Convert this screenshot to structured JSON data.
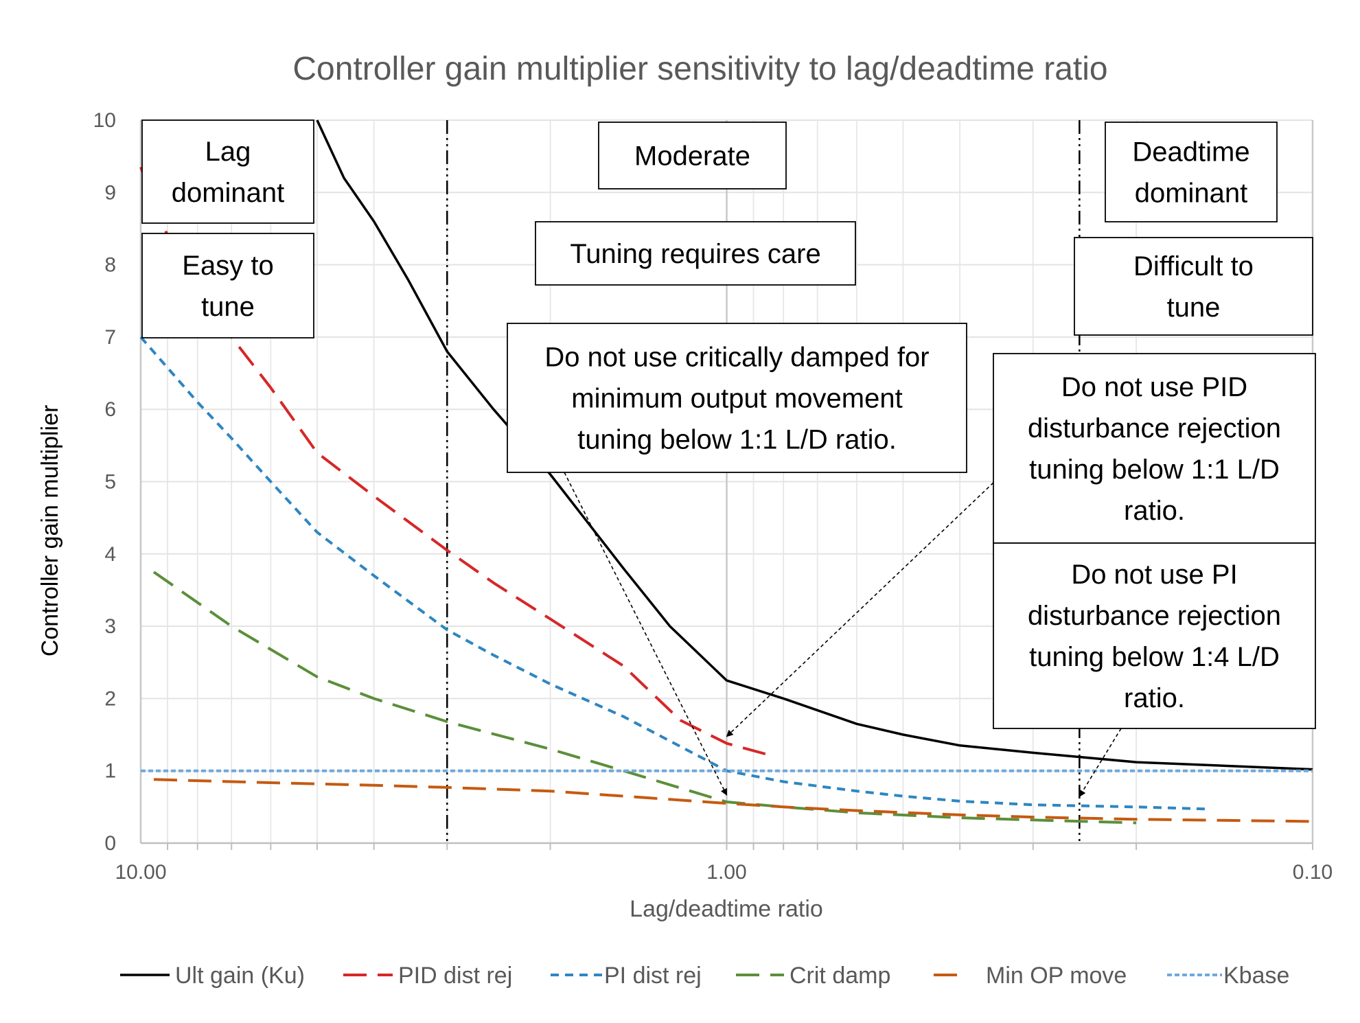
{
  "chart_data": {
    "type": "line",
    "title": "Controller gain multiplier sensitivity to lag/deadtime ratio",
    "xlabel": "Lag/deadtime ratio",
    "ylabel": "Controller gain multiplier",
    "x_scale": "log",
    "x_reversed": true,
    "xlim": [
      10,
      0.1
    ],
    "ylim": [
      0,
      10
    ],
    "x_tick_labels": [
      {
        "value": 10,
        "label": "10.00"
      },
      {
        "value": 1,
        "label": "1.00"
      },
      {
        "value": 0.1,
        "label": "0.10"
      }
    ],
    "y_ticks": [
      0,
      1,
      2,
      3,
      4,
      5,
      6,
      7,
      8,
      9,
      10
    ],
    "grid": true,
    "legend_position": "bottom",
    "series": [
      {
        "name": "Ult gain (Ku)",
        "color": "#000000",
        "dash": "solid",
        "points": [
          [
            5.0,
            10.0
          ],
          [
            4.5,
            9.2
          ],
          [
            4.0,
            8.6
          ],
          [
            3.5,
            7.8
          ],
          [
            3.0,
            6.8
          ],
          [
            2.5,
            6.0
          ],
          [
            2.0,
            5.1
          ],
          [
            1.5,
            3.8
          ],
          [
            1.25,
            3.0
          ],
          [
            1.0,
            2.25
          ],
          [
            0.8,
            2.0
          ],
          [
            0.6,
            1.65
          ],
          [
            0.5,
            1.5
          ],
          [
            0.4,
            1.35
          ],
          [
            0.3,
            1.25
          ],
          [
            0.2,
            1.12
          ],
          [
            0.1,
            1.02
          ]
        ]
      },
      {
        "name": "PID dist rej",
        "color": "#d62728",
        "dash": "long",
        "points": [
          [
            10.0,
            9.35
          ],
          [
            9.0,
            8.4
          ],
          [
            8.0,
            7.8
          ],
          [
            7.0,
            7.0
          ],
          [
            6.0,
            6.3
          ],
          [
            5.0,
            5.4
          ],
          [
            4.0,
            4.8
          ],
          [
            3.0,
            4.05
          ],
          [
            2.5,
            3.6
          ],
          [
            2.0,
            3.1
          ],
          [
            1.5,
            2.45
          ],
          [
            1.2,
            1.7
          ],
          [
            1.0,
            1.38
          ],
          [
            0.83,
            1.2
          ]
        ]
      },
      {
        "name": "PI dist rej",
        "color": "#2e86c1",
        "dash": "short",
        "points": [
          [
            10.0,
            7.0
          ],
          [
            8.0,
            6.1
          ],
          [
            7.0,
            5.6
          ],
          [
            6.0,
            5.0
          ],
          [
            5.0,
            4.3
          ],
          [
            4.0,
            3.7
          ],
          [
            3.0,
            2.95
          ],
          [
            2.5,
            2.6
          ],
          [
            2.0,
            2.2
          ],
          [
            1.5,
            1.75
          ],
          [
            1.0,
            1.0
          ],
          [
            0.8,
            0.85
          ],
          [
            0.6,
            0.72
          ],
          [
            0.5,
            0.65
          ],
          [
            0.4,
            0.58
          ],
          [
            0.3,
            0.53
          ],
          [
            0.2,
            0.5
          ],
          [
            0.15,
            0.47
          ]
        ]
      },
      {
        "name": "Crit damp",
        "color": "#5b8f3a",
        "dash": "long",
        "points": [
          [
            9.5,
            3.75
          ],
          [
            7.0,
            3.0
          ],
          [
            5.0,
            2.3
          ],
          [
            4.0,
            2.0
          ],
          [
            3.0,
            1.68
          ],
          [
            2.0,
            1.3
          ],
          [
            1.5,
            1.0
          ],
          [
            1.0,
            0.57
          ],
          [
            0.8,
            0.5
          ],
          [
            0.6,
            0.42
          ],
          [
            0.4,
            0.35
          ],
          [
            0.3,
            0.32
          ],
          [
            0.2,
            0.28
          ]
        ]
      },
      {
        "name": "Min OP move",
        "color": "#c55a11",
        "dash": "long",
        "points": [
          [
            9.5,
            0.88
          ],
          [
            7.0,
            0.85
          ],
          [
            5.0,
            0.82
          ],
          [
            4.0,
            0.8
          ],
          [
            3.0,
            0.77
          ],
          [
            2.0,
            0.72
          ],
          [
            1.5,
            0.65
          ],
          [
            1.0,
            0.55
          ],
          [
            0.8,
            0.5
          ],
          [
            0.6,
            0.45
          ],
          [
            0.4,
            0.39
          ],
          [
            0.3,
            0.36
          ],
          [
            0.2,
            0.33
          ],
          [
            0.1,
            0.3
          ]
        ]
      },
      {
        "name": "Kbase",
        "color": "#6fa8dc",
        "dash": "dotted",
        "points": [
          [
            10.0,
            1.0
          ],
          [
            0.1,
            1.0
          ]
        ]
      }
    ],
    "reference_lines": [
      {
        "x": 3.0,
        "style": "dash-dot-dot",
        "color": "#000000"
      },
      {
        "x": 0.25,
        "style": "dash-dot-dot",
        "color": "#000000"
      }
    ],
    "annotations": [
      {
        "id": "lag-dominant",
        "lines": [
          "Lag",
          "dominant"
        ]
      },
      {
        "id": "easy-to-tune",
        "lines": [
          "Easy to",
          "tune"
        ]
      },
      {
        "id": "moderate",
        "lines": [
          "Moderate"
        ]
      },
      {
        "id": "tuning-requires-care",
        "lines": [
          "Tuning requires care"
        ]
      },
      {
        "id": "deadtime-dominant",
        "lines": [
          "Deadtime",
          "dominant"
        ]
      },
      {
        "id": "difficult-to-tune",
        "lines": [
          "Difficult to",
          "tune"
        ]
      },
      {
        "id": "crit-damped-note",
        "lines": [
          "Do not use critically damped for",
          "minimum output movement",
          "tuning below 1:1 L/D ratio."
        ],
        "points_to": [
          1.0,
          0.57
        ]
      },
      {
        "id": "pid-note",
        "lines": [
          "Do not use PID",
          "disturbance rejection",
          "tuning below 1:1 L/D",
          "ratio."
        ],
        "points_to": [
          1.0,
          1.38
        ]
      },
      {
        "id": "pi-note",
        "lines": [
          "Do not use PI",
          "disturbance rejection",
          "tuning below 1:4 L/D",
          "ratio."
        ],
        "points_to": [
          0.25,
          0.55
        ]
      }
    ]
  }
}
